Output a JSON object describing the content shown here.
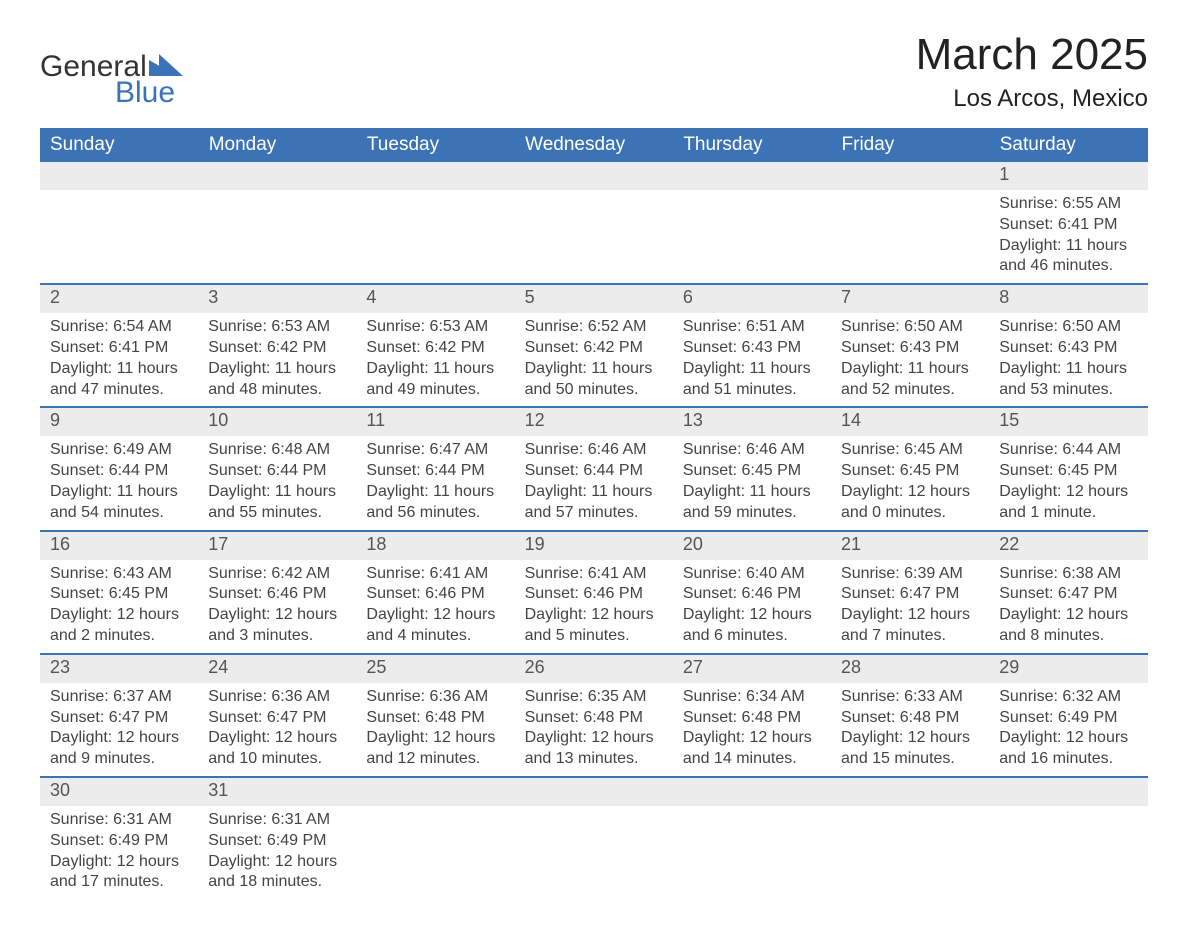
{
  "logo": {
    "text_general": "General",
    "text_blue": "Blue",
    "flag_color": "#3b73b6"
  },
  "title": {
    "month": "March 2025",
    "location": "Los Arcos, Mexico"
  },
  "colors": {
    "header_bg": "#3b73b6",
    "header_text": "#ffffff",
    "daynum_bg": "#ececec",
    "row_border": "#3b73b6",
    "body_text": "#444444"
  },
  "daysOfWeek": [
    "Sunday",
    "Monday",
    "Tuesday",
    "Wednesday",
    "Thursday",
    "Friday",
    "Saturday"
  ],
  "weeks": [
    [
      null,
      null,
      null,
      null,
      null,
      null,
      {
        "n": "1",
        "sr": "Sunrise: 6:55 AM",
        "ss": "Sunset: 6:41 PM",
        "dl": "Daylight: 11 hours and 46 minutes."
      }
    ],
    [
      {
        "n": "2",
        "sr": "Sunrise: 6:54 AM",
        "ss": "Sunset: 6:41 PM",
        "dl": "Daylight: 11 hours and 47 minutes."
      },
      {
        "n": "3",
        "sr": "Sunrise: 6:53 AM",
        "ss": "Sunset: 6:42 PM",
        "dl": "Daylight: 11 hours and 48 minutes."
      },
      {
        "n": "4",
        "sr": "Sunrise: 6:53 AM",
        "ss": "Sunset: 6:42 PM",
        "dl": "Daylight: 11 hours and 49 minutes."
      },
      {
        "n": "5",
        "sr": "Sunrise: 6:52 AM",
        "ss": "Sunset: 6:42 PM",
        "dl": "Daylight: 11 hours and 50 minutes."
      },
      {
        "n": "6",
        "sr": "Sunrise: 6:51 AM",
        "ss": "Sunset: 6:43 PM",
        "dl": "Daylight: 11 hours and 51 minutes."
      },
      {
        "n": "7",
        "sr": "Sunrise: 6:50 AM",
        "ss": "Sunset: 6:43 PM",
        "dl": "Daylight: 11 hours and 52 minutes."
      },
      {
        "n": "8",
        "sr": "Sunrise: 6:50 AM",
        "ss": "Sunset: 6:43 PM",
        "dl": "Daylight: 11 hours and 53 minutes."
      }
    ],
    [
      {
        "n": "9",
        "sr": "Sunrise: 6:49 AM",
        "ss": "Sunset: 6:44 PM",
        "dl": "Daylight: 11 hours and 54 minutes."
      },
      {
        "n": "10",
        "sr": "Sunrise: 6:48 AM",
        "ss": "Sunset: 6:44 PM",
        "dl": "Daylight: 11 hours and 55 minutes."
      },
      {
        "n": "11",
        "sr": "Sunrise: 6:47 AM",
        "ss": "Sunset: 6:44 PM",
        "dl": "Daylight: 11 hours and 56 minutes."
      },
      {
        "n": "12",
        "sr": "Sunrise: 6:46 AM",
        "ss": "Sunset: 6:44 PM",
        "dl": "Daylight: 11 hours and 57 minutes."
      },
      {
        "n": "13",
        "sr": "Sunrise: 6:46 AM",
        "ss": "Sunset: 6:45 PM",
        "dl": "Daylight: 11 hours and 59 minutes."
      },
      {
        "n": "14",
        "sr": "Sunrise: 6:45 AM",
        "ss": "Sunset: 6:45 PM",
        "dl": "Daylight: 12 hours and 0 minutes."
      },
      {
        "n": "15",
        "sr": "Sunrise: 6:44 AM",
        "ss": "Sunset: 6:45 PM",
        "dl": "Daylight: 12 hours and 1 minute."
      }
    ],
    [
      {
        "n": "16",
        "sr": "Sunrise: 6:43 AM",
        "ss": "Sunset: 6:45 PM",
        "dl": "Daylight: 12 hours and 2 minutes."
      },
      {
        "n": "17",
        "sr": "Sunrise: 6:42 AM",
        "ss": "Sunset: 6:46 PM",
        "dl": "Daylight: 12 hours and 3 minutes."
      },
      {
        "n": "18",
        "sr": "Sunrise: 6:41 AM",
        "ss": "Sunset: 6:46 PM",
        "dl": "Daylight: 12 hours and 4 minutes."
      },
      {
        "n": "19",
        "sr": "Sunrise: 6:41 AM",
        "ss": "Sunset: 6:46 PM",
        "dl": "Daylight: 12 hours and 5 minutes."
      },
      {
        "n": "20",
        "sr": "Sunrise: 6:40 AM",
        "ss": "Sunset: 6:46 PM",
        "dl": "Daylight: 12 hours and 6 minutes."
      },
      {
        "n": "21",
        "sr": "Sunrise: 6:39 AM",
        "ss": "Sunset: 6:47 PM",
        "dl": "Daylight: 12 hours and 7 minutes."
      },
      {
        "n": "22",
        "sr": "Sunrise: 6:38 AM",
        "ss": "Sunset: 6:47 PM",
        "dl": "Daylight: 12 hours and 8 minutes."
      }
    ],
    [
      {
        "n": "23",
        "sr": "Sunrise: 6:37 AM",
        "ss": "Sunset: 6:47 PM",
        "dl": "Daylight: 12 hours and 9 minutes."
      },
      {
        "n": "24",
        "sr": "Sunrise: 6:36 AM",
        "ss": "Sunset: 6:47 PM",
        "dl": "Daylight: 12 hours and 10 minutes."
      },
      {
        "n": "25",
        "sr": "Sunrise: 6:36 AM",
        "ss": "Sunset: 6:48 PM",
        "dl": "Daylight: 12 hours and 12 minutes."
      },
      {
        "n": "26",
        "sr": "Sunrise: 6:35 AM",
        "ss": "Sunset: 6:48 PM",
        "dl": "Daylight: 12 hours and 13 minutes."
      },
      {
        "n": "27",
        "sr": "Sunrise: 6:34 AM",
        "ss": "Sunset: 6:48 PM",
        "dl": "Daylight: 12 hours and 14 minutes."
      },
      {
        "n": "28",
        "sr": "Sunrise: 6:33 AM",
        "ss": "Sunset: 6:48 PM",
        "dl": "Daylight: 12 hours and 15 minutes."
      },
      {
        "n": "29",
        "sr": "Sunrise: 6:32 AM",
        "ss": "Sunset: 6:49 PM",
        "dl": "Daylight: 12 hours and 16 minutes."
      }
    ],
    [
      {
        "n": "30",
        "sr": "Sunrise: 6:31 AM",
        "ss": "Sunset: 6:49 PM",
        "dl": "Daylight: 12 hours and 17 minutes."
      },
      {
        "n": "31",
        "sr": "Sunrise: 6:31 AM",
        "ss": "Sunset: 6:49 PM",
        "dl": "Daylight: 12 hours and 18 minutes."
      },
      null,
      null,
      null,
      null,
      null
    ]
  ]
}
